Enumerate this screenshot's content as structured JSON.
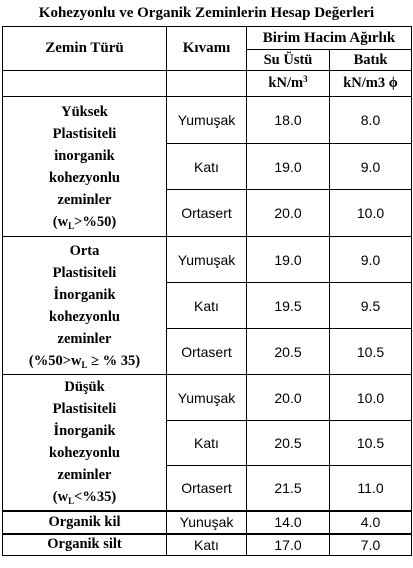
{
  "title": "Kohezyonlu ve Organik Zeminlerin Hesap Değerleri",
  "headers": {
    "zemin_turu": "Zemin Türü",
    "kivami": "Kıvamı",
    "birim_hacim": "Birim Hacim Ağırlık",
    "su_ustu": "Su Üstü",
    "batik": "Batık",
    "unit_su_ustu": "kN/m",
    "unit_su_ustu_exp": "3",
    "unit_batik": "kN/m3 ϕ"
  },
  "groups": [
    {
      "lines": [
        "Yüksek",
        "Plastisiteli",
        "inorganik",
        "kohezyonlu",
        "zeminler"
      ],
      "cond": {
        "pre": "(w",
        "sub": "L",
        "post": ">%50)"
      },
      "rows": [
        {
          "kivam": "Yumuşak",
          "su_ustu": "18.0",
          "batik": "8.0"
        },
        {
          "kivam": "Katı",
          "su_ustu": "19.0",
          "batik": "9.0"
        },
        {
          "kivam": "Ortasert",
          "su_ustu": "20.0",
          "batik": "10.0"
        }
      ]
    },
    {
      "lines": [
        "Orta",
        "Plastisiteli",
        "İnorganik",
        "kohezyonlu",
        "zeminler"
      ],
      "cond": {
        "pre": "(%50>w",
        "sub": "L",
        "post": " ≥ % 35)"
      },
      "rows": [
        {
          "kivam": "Yumuşak",
          "su_ustu": "19.0",
          "batik": "9.0"
        },
        {
          "kivam": "Katı",
          "su_ustu": "19.5",
          "batik": "9.5"
        },
        {
          "kivam": "Ortasert",
          "su_ustu": "20.5",
          "batik": "10.5"
        }
      ]
    },
    {
      "lines": [
        "Düşük",
        "Plastisiteli",
        "İnorganik",
        "kohezyonlu",
        "zeminler"
      ],
      "cond": {
        "pre": "(w",
        "sub": "L",
        "post": "<%35)"
      },
      "rows": [
        {
          "kivam": "Yumuşak",
          "su_ustu": "20.0",
          "batik": "10.0"
        },
        {
          "kivam": "Katı",
          "su_ustu": "20.5",
          "batik": "10.5"
        },
        {
          "kivam": "Ortasert",
          "su_ustu": "21.5",
          "batik": "11.0"
        }
      ]
    }
  ],
  "singles": [
    {
      "name": "Organik kil",
      "kivam": "Yunuşak",
      "su_ustu": "14.0",
      "batik": "4.0"
    },
    {
      "name": "Organik silt",
      "kivam": "Katı",
      "su_ustu": "17.0",
      "batik": "7.0"
    }
  ]
}
